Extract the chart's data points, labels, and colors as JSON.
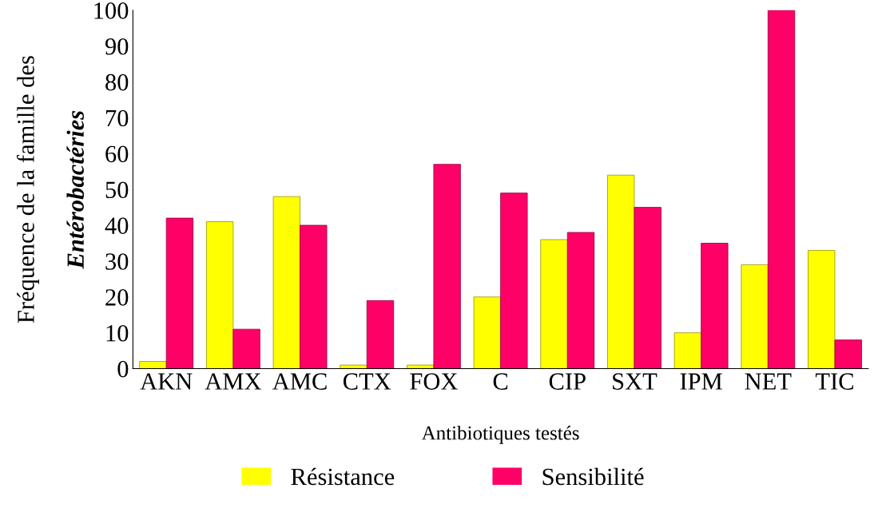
{
  "chart_data": {
    "type": "bar",
    "xlabel": "Antibiotiques testés",
    "ylabel": "Fréquence de la famille des\nEntérobactéries",
    "categories": [
      "AKN",
      "AMX",
      "AMC",
      "CTX",
      "FOX",
      "C",
      "CIP",
      "SXT",
      "IPM",
      "NET",
      "TIC"
    ],
    "series": [
      {
        "name": "Résistance",
        "color": "#ffff00",
        "values": [
          2,
          41,
          48,
          1,
          1,
          20,
          36,
          54,
          10,
          29,
          33
        ]
      },
      {
        "name": "Sensibilité",
        "color": "#ff0066",
        "values": [
          42,
          11,
          40,
          19,
          57,
          49,
          38,
          45,
          35,
          100,
          8
        ]
      }
    ],
    "ylim": [
      0,
      100
    ],
    "yticks": [
      0,
      10,
      20,
      30,
      40,
      50,
      60,
      70,
      80,
      90,
      100
    ],
    "grid": false,
    "legend": "bottom"
  }
}
